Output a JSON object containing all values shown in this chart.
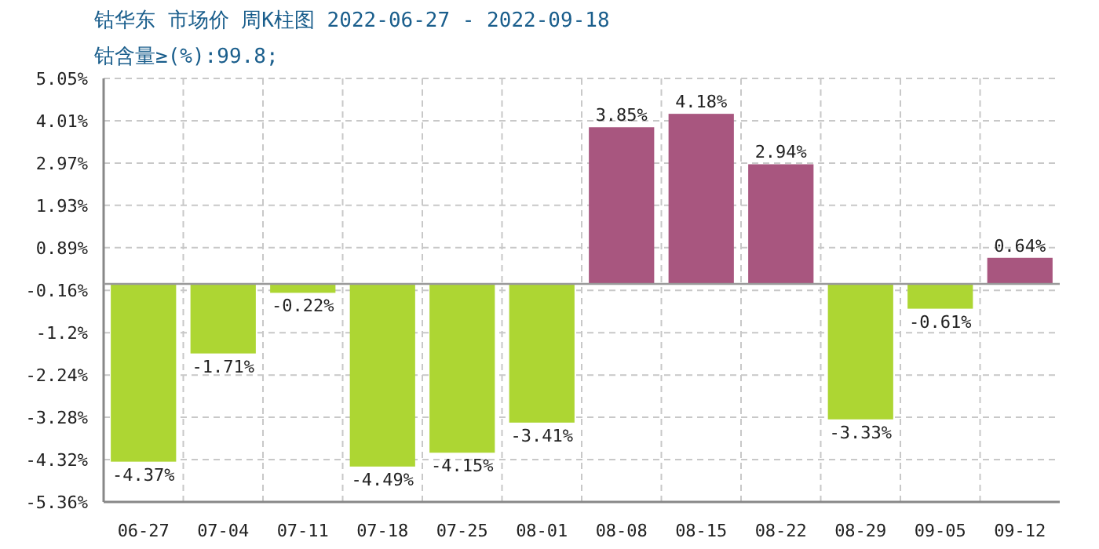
{
  "chart_data": {
    "type": "bar",
    "title": "钴华东 市场价 周K柱图 2022-06-27 - 2022-09-18",
    "subtitle": "钴含量≥(%):99.8;",
    "categories": [
      "06-27",
      "07-04",
      "07-11",
      "07-18",
      "07-25",
      "08-01",
      "08-08",
      "08-15",
      "08-22",
      "08-29",
      "09-05",
      "09-12"
    ],
    "values": [
      -4.37,
      -1.71,
      -0.22,
      -4.49,
      -4.15,
      -3.41,
      3.85,
      4.18,
      2.94,
      -3.33,
      -0.61,
      0.64
    ],
    "colors": [
      "#add633",
      "#add633",
      "#add633",
      "#add633",
      "#add633",
      "#add633",
      "#a8567f",
      "#a8567f",
      "#a8567f",
      "#add633",
      "#add633",
      "#a8567f"
    ],
    "value_labels": [
      "-4.37%",
      "-1.71%",
      "-0.22%",
      "-4.49%",
      "-4.15%",
      "-3.41%",
      "3.85%",
      "4.18%",
      "2.94%",
      "-3.33%",
      "-0.61%",
      "0.64%"
    ],
    "ylim": [
      -5.36,
      5.05
    ],
    "yticks": [
      {
        "value": 5.05,
        "label": "5.05%"
      },
      {
        "value": 4.01,
        "label": "4.01%"
      },
      {
        "value": 2.97,
        "label": "2.97%"
      },
      {
        "value": 1.93,
        "label": "1.93%"
      },
      {
        "value": 0.89,
        "label": "0.89%"
      },
      {
        "value": -0.16,
        "label": "-0.16%"
      },
      {
        "value": -1.2,
        "label": "-1.2%"
      },
      {
        "value": -2.24,
        "label": "-2.24%"
      },
      {
        "value": -3.28,
        "label": "-3.28%"
      },
      {
        "value": -4.32,
        "label": "-4.32%"
      },
      {
        "value": -5.36,
        "label": "-5.36%"
      }
    ],
    "grid": true
  }
}
